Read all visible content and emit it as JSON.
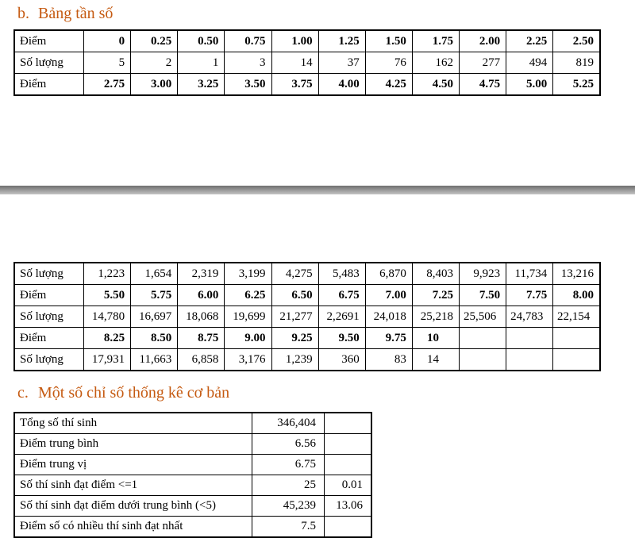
{
  "colors": {
    "accent": "#C55A11"
  },
  "heading_b": {
    "marker": "b.",
    "text": "Bảng tần số"
  },
  "heading_c": {
    "marker": "c.",
    "text": "Một số chỉ số thống kê cơ bản"
  },
  "table1": {
    "rows": [
      {
        "label": "Điểm",
        "bold": true,
        "cells": [
          "0",
          "0.25",
          "0.50",
          "0.75",
          "1.00",
          "1.25",
          "1.50",
          "1.75",
          "2.00",
          "2.25",
          "2.50"
        ]
      },
      {
        "label": "Số lượng",
        "bold": false,
        "cells": [
          "5",
          "2",
          "1",
          "3",
          "14",
          "37",
          "76",
          "162",
          "277",
          "494",
          "819"
        ]
      },
      {
        "label": "Điểm",
        "bold": true,
        "cells": [
          "2.75",
          "3.00",
          "3.25",
          "3.50",
          "3.75",
          "4.00",
          "4.25",
          "4.50",
          "4.75",
          "5.00",
          "5.25"
        ]
      }
    ]
  },
  "table2": {
    "rows": [
      {
        "label": "Số lượng",
        "bold": false,
        "cells": [
          "1,223",
          "1,654",
          "2,319",
          "3,199",
          "4,275",
          "5,483",
          "6,870",
          "8,403",
          "9,923",
          "11,734",
          "13,216"
        ]
      },
      {
        "label": "Điểm",
        "bold": true,
        "cells": [
          "5.50",
          "5.75",
          "6.00",
          "6.25",
          "6.50",
          "6.75",
          "7.00",
          "7.25",
          "7.50",
          "7.75",
          "8.00"
        ]
      },
      {
        "label": "Số lượng",
        "bold": false,
        "cells": [
          "14,780",
          "16,697",
          "18,068",
          "19,699",
          "21,277",
          "2,2691",
          "24,018",
          "25,218",
          "25,506",
          "24,783",
          "22,154"
        ],
        "aligns": {
          "8": "center",
          "9": "center",
          "10": "center"
        }
      },
      {
        "label": "Điểm",
        "bold": true,
        "cells": [
          "8.25",
          "8.50",
          "8.75",
          "9.00",
          "9.25",
          "9.50",
          "9.75",
          "10",
          "",
          "",
          ""
        ],
        "aligns": {
          "7": "center"
        }
      },
      {
        "label": "Số lượng",
        "bold": false,
        "cells": [
          "17,931",
          "11,663",
          "6,858",
          "3,176",
          "1,239",
          "360",
          "83",
          "14",
          "",
          "",
          ""
        ],
        "aligns": {
          "7": "center"
        }
      }
    ]
  },
  "table3": {
    "rows": [
      {
        "label": "Tổng số thí sinh",
        "bold": false,
        "cells": [
          "346,404",
          ""
        ]
      },
      {
        "label": "Điểm trung bình",
        "bold": false,
        "cells": [
          "6.56",
          ""
        ]
      },
      {
        "label": "Điểm trung vị",
        "bold": false,
        "cells": [
          "6.75",
          ""
        ]
      },
      {
        "label": "Số thí sinh đạt điểm <=1",
        "bold": false,
        "cells": [
          "25",
          "0.01"
        ]
      },
      {
        "label": "Số thí sinh đạt điểm dưới trung bình (<5)",
        "bold": false,
        "cells": [
          "45,239",
          "13.06"
        ]
      },
      {
        "label": "Điểm số có nhiều thí sinh đạt nhất",
        "bold": false,
        "cells": [
          "7.5",
          ""
        ]
      }
    ]
  }
}
